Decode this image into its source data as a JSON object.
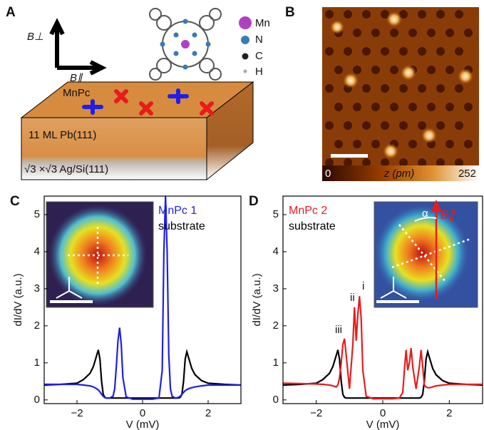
{
  "panels": {
    "A": {
      "label": "A",
      "b_perp": "B⊥",
      "b_par": "B∥",
      "molecule": "MnPc",
      "layer": "11 ML Pb(111)",
      "substrate": "√3 ×√3 Ag/Si(111)",
      "atoms": [
        "Mn",
        "N",
        "C",
        "H"
      ]
    },
    "B": {
      "label": "B",
      "cbar_min": "0",
      "cbar_label": "z (pm)",
      "cbar_max": "252"
    }
  },
  "chart_data": [
    {
      "type": "line",
      "label": "C",
      "xlabel": "V (mV)",
      "ylabel": "dI/dV (a.u.)",
      "xlim": [
        -3,
        3
      ],
      "ylim": [
        -0.1,
        5.5
      ],
      "xticks": [
        {
          "value": -2,
          "label": "−2"
        },
        0,
        2
      ],
      "yticks": [
        0,
        1,
        2,
        3,
        4,
        5
      ],
      "x": [
        -3,
        -2.5,
        -2,
        -1.8,
        -1.6,
        -1.5,
        -1.4,
        -1.35,
        -1.3,
        -1.25,
        -1.2,
        -1.15,
        -1.1,
        -1.0,
        -0.9,
        -0.85,
        -0.8,
        -0.75,
        -0.7,
        -0.65,
        -0.6,
        -0.5,
        -0.3,
        0,
        0.3,
        0.5,
        0.6,
        0.65,
        0.7,
        0.75,
        0.8,
        0.85,
        0.9,
        1.0,
        1.1,
        1.15,
        1.2,
        1.25,
        1.3,
        1.35,
        1.4,
        1.5,
        1.6,
        1.8,
        2,
        2.5,
        3
      ],
      "series": [
        {
          "name": "substrate",
          "color": "#000000",
          "values": [
            0.4,
            0.42,
            0.45,
            0.55,
            0.72,
            0.9,
            1.2,
            1.35,
            1.1,
            0.5,
            0.15,
            0.07,
            0.05,
            0.05,
            0.05,
            0.05,
            0.05,
            0.05,
            0.05,
            0.05,
            0.05,
            0.05,
            0.05,
            0.05,
            0.05,
            0.05,
            0.05,
            0.05,
            0.05,
            0.05,
            0.05,
            0.05,
            0.05,
            0.05,
            0.05,
            0.07,
            0.15,
            0.5,
            1.1,
            1.3,
            1.15,
            0.85,
            0.68,
            0.52,
            0.45,
            0.42,
            0.4
          ]
        },
        {
          "name": "MnPc 1",
          "color": "#1f1fe6",
          "values": [
            0.42,
            0.42,
            0.42,
            0.4,
            0.38,
            0.35,
            0.3,
            0.27,
            0.22,
            0.15,
            0.1,
            0.06,
            0.05,
            0.05,
            0.1,
            0.3,
            0.9,
            1.6,
            1.95,
            1.5,
            0.6,
            0.08,
            0.02,
            0.02,
            0.02,
            0.05,
            0.8,
            4,
            5.5,
            4,
            1.2,
            0.3,
            0.1,
            0.05,
            0.07,
            0.1,
            0.15,
            0.2,
            0.25,
            0.28,
            0.3,
            0.33,
            0.35,
            0.38,
            0.4,
            0.4,
            0.4
          ]
        }
      ],
      "legend": [
        "MnPc 1",
        "substrate"
      ]
    },
    {
      "type": "line",
      "label": "D",
      "xlabel": "V (mV)",
      "ylabel": "dI/dV (a.u.)",
      "xlim": [
        -3,
        3
      ],
      "ylim": [
        -0.1,
        5.5
      ],
      "xticks": [
        {
          "value": -2,
          "label": "−2"
        },
        0,
        2
      ],
      "yticks": [
        0,
        1,
        2,
        3,
        4,
        5
      ],
      "x": [
        -3,
        -2.5,
        -2,
        -1.8,
        -1.6,
        -1.5,
        -1.4,
        -1.35,
        -1.3,
        -1.25,
        -1.2,
        -1.15,
        -1.1,
        -1.0,
        -0.9,
        -0.85,
        -0.8,
        -0.75,
        -0.7,
        -0.65,
        -0.6,
        -0.5,
        -0.3,
        0,
        0.3,
        0.5,
        0.6,
        0.65,
        0.7,
        0.75,
        0.8,
        0.85,
        0.9,
        1.0,
        1.1,
        1.15,
        1.2,
        1.25,
        1.3,
        1.35,
        1.4,
        1.5,
        1.6,
        1.8,
        2,
        2.5,
        3
      ],
      "series": [
        {
          "name": "substrate",
          "color": "#000000",
          "values": [
            0.4,
            0.42,
            0.45,
            0.55,
            0.72,
            0.9,
            1.2,
            1.35,
            1.1,
            0.5,
            0.15,
            0.07,
            0.05,
            0.05,
            0.05,
            0.05,
            0.05,
            0.05,
            0.05,
            0.05,
            0.05,
            0.05,
            0.05,
            0.05,
            0.05,
            0.05,
            0.05,
            0.05,
            0.05,
            0.05,
            0.05,
            0.05,
            0.05,
            0.05,
            0.05,
            0.07,
            0.15,
            0.5,
            1.1,
            1.3,
            1.15,
            0.85,
            0.68,
            0.52,
            0.45,
            0.42,
            0.4
          ]
        },
        {
          "name": "MnPc 2",
          "color": "#e81c1c",
          "values": [
            0.45,
            0.44,
            0.43,
            0.42,
            0.4,
            0.38,
            0.35,
            0.4,
            0.6,
            1.0,
            1.5,
            1.65,
            1.2,
            0.3,
            1.5,
            2.5,
            1.6,
            2.3,
            2.8,
            2.2,
            0.8,
            0.1,
            0.03,
            0.03,
            0.03,
            0.05,
            0.2,
            0.8,
            1.35,
            0.8,
            1.0,
            1.4,
            0.9,
            0.3,
            0.9,
            1.35,
            0.9,
            0.4,
            0.35,
            0.33,
            0.33,
            0.35,
            0.38,
            0.4,
            0.42,
            0.42,
            0.42
          ]
        }
      ],
      "legend": [
        "MnPc 2",
        "substrate"
      ],
      "annotations": [
        "iii",
        "ii",
        "i",
        "α",
        "B∥"
      ]
    }
  ]
}
